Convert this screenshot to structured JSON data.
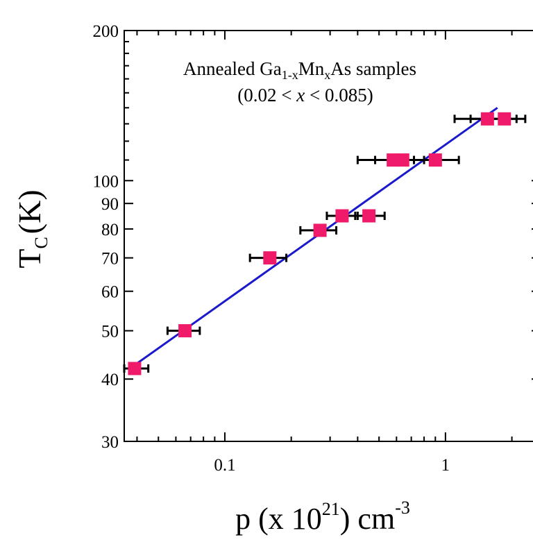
{
  "chart_data": {
    "type": "scatter",
    "xscale": "log",
    "yscale": "log",
    "xlim": [
      0.035,
      2.7
    ],
    "ylim": [
      30,
      200
    ],
    "grid": false,
    "xlabel": {
      "base": "p (x 10",
      "exp": "21",
      "mid": ") cm",
      "exp2": "-3"
    },
    "ylabel": {
      "base": "T",
      "sub": "C",
      "unit": "(K)"
    },
    "xticks": [
      {
        "value": 0.1,
        "label": "0.1"
      },
      {
        "value": 1,
        "label": "1"
      }
    ],
    "yticks": [
      {
        "value": 30,
        "label": "30"
      },
      {
        "value": 40,
        "label": "40"
      },
      {
        "value": 50,
        "label": "50"
      },
      {
        "value": 60,
        "label": "60"
      },
      {
        "value": 70,
        "label": "70"
      },
      {
        "value": 80,
        "label": "80"
      },
      {
        "value": 90,
        "label": "90"
      },
      {
        "value": 100,
        "label": "100"
      },
      {
        "value": 200,
        "label": "200"
      }
    ],
    "annotation": {
      "line1_pre": "Annealed Ga",
      "sub1": "1-x",
      "mid": "Mn",
      "sub2": "x",
      "line1_post": "As samples",
      "line2_pre": "(0.02 < ",
      "line2_var": "x",
      "line2_post": " < 0.085)"
    },
    "series": [
      {
        "marker_color": "#ef1b6a",
        "points": [
          {
            "x": 0.039,
            "y": 42,
            "xerr": [
              0.035,
              0.045
            ]
          },
          {
            "x": 0.066,
            "y": 50,
            "xerr": [
              0.055,
              0.077
            ]
          },
          {
            "x": 0.16,
            "y": 70,
            "xerr": [
              0.13,
              0.19
            ]
          },
          {
            "x": 0.27,
            "y": 79.5,
            "xerr": [
              0.22,
              0.32
            ]
          },
          {
            "x": 0.34,
            "y": 85,
            "xerr": [
              0.29,
              0.4
            ]
          },
          {
            "x": 0.45,
            "y": 85,
            "xerr": [
              0.39,
              0.53
            ]
          },
          {
            "x": 0.58,
            "y": 110,
            "xerr": [
              0.4,
              0.72
            ]
          },
          {
            "x": 0.64,
            "y": 110,
            "xerr": [
              0.48,
              0.8
            ]
          },
          {
            "x": 0.9,
            "y": 110,
            "xerr": [
              0.72,
              1.15
            ]
          },
          {
            "x": 1.55,
            "y": 133,
            "xerr": [
              1.1,
              2.1
            ]
          },
          {
            "x": 1.85,
            "y": 133,
            "xerr": [
              1.3,
              2.3
            ]
          }
        ]
      }
    ],
    "fit": {
      "color": "#1a1acc",
      "x": [
        0.04,
        1.72
      ],
      "y": [
        43,
        140
      ]
    }
  }
}
